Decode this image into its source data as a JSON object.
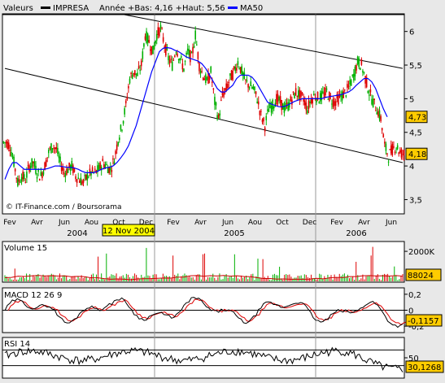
{
  "legend": {
    "valeurs_label": "Valeurs",
    "stock_name": "IMPRESA",
    "range_label": "Année +Bas: 4,16 +Haut: 5,56",
    "ma_label": "MA50",
    "stock_color": "#000000",
    "ma_color": "#0000ff"
  },
  "source_label": "© IT-Finance.com / Boursorama",
  "chart_data": [
    {
      "type": "candlestick",
      "name": "IMPRESA",
      "y_ticks": [
        "6",
        "5,5",
        "5",
        "4,5",
        "4",
        "3,5"
      ],
      "y_tick_values": [
        6,
        5.5,
        5,
        4.5,
        4,
        3.5
      ],
      "ylim": [
        3.3,
        6.25
      ],
      "month_labels": [
        "Fev",
        "Avr",
        "Jun",
        "Aou",
        "Oct",
        "Dec",
        "Fev",
        "Avr",
        "Jun",
        "Aou",
        "Oct",
        "Dec",
        "Fev",
        "Avr",
        "Jun"
      ],
      "year_labels": [
        "2004",
        "2005",
        "2006"
      ],
      "cursor_date": "12 Nov 2004",
      "price_labels": [
        {
          "text": "4,73",
          "value": 4.73
        },
        {
          "text": "4,18",
          "value": 4.18
        }
      ],
      "trend_channel": [
        {
          "from": [
            0,
            5.45
          ],
          "to": [
            120,
            4.05
          ]
        },
        {
          "from": [
            36,
            6.25
          ],
          "to": [
            120,
            5.45
          ]
        }
      ],
      "series": [
        {
          "name": "IMPRESA",
          "color": "#000000",
          "values": [
            4.35,
            4.3,
            4.05,
            3.75,
            3.85,
            3.8,
            4.0,
            4.05,
            3.9,
            3.85,
            4.0,
            4.2,
            4.3,
            4.25,
            4.05,
            3.9,
            3.95,
            4.0,
            3.85,
            3.8,
            3.75,
            3.85,
            3.9,
            3.9,
            3.95,
            4.05,
            4.0,
            3.95,
            4.1,
            4.4,
            4.6,
            4.9,
            5.3,
            5.4,
            5.35,
            5.5,
            5.95,
            5.85,
            5.7,
            5.95,
            6.05,
            5.8,
            5.6,
            5.5,
            5.75,
            5.6,
            5.45,
            5.7,
            5.6,
            5.95,
            5.5,
            5.35,
            5.25,
            5.4,
            4.95,
            4.7,
            5.05,
            5.15,
            5.3,
            5.4,
            5.55,
            5.4,
            5.25,
            5.2,
            5.15,
            5.0,
            4.75,
            4.6,
            4.85,
            4.9,
            5.0,
            4.95,
            4.85,
            4.9,
            5.0,
            5.1,
            5.05,
            5.0,
            4.85,
            5.0,
            5.05,
            5.0,
            5.05,
            5.1,
            5.0,
            4.95,
            5.0,
            5.05,
            5.1,
            5.2,
            5.35,
            5.55,
            5.5,
            5.3,
            5.1,
            4.95,
            4.85,
            4.7,
            4.3,
            4.15,
            4.25,
            4.3,
            4.2,
            4.18
          ]
        },
        {
          "name": "MA50",
          "color": "#0000ff",
          "values": [
            3.8,
            3.95,
            4.05,
            4.05,
            4.0,
            3.95,
            3.95,
            3.95,
            3.95,
            3.95,
            3.95,
            3.96,
            3.98,
            4.0,
            4.0,
            3.99,
            3.98,
            3.98,
            3.97,
            3.95,
            3.92,
            3.9,
            3.9,
            3.9,
            3.92,
            3.95,
            3.97,
            3.98,
            4.0,
            4.05,
            4.12,
            4.2,
            4.3,
            4.45,
            4.6,
            4.8,
            5.0,
            5.2,
            5.4,
            5.55,
            5.7,
            5.75,
            5.76,
            5.75,
            5.72,
            5.7,
            5.66,
            5.62,
            5.6,
            5.58,
            5.56,
            5.52,
            5.45,
            5.35,
            5.25,
            5.15,
            5.1,
            5.1,
            5.15,
            5.2,
            5.3,
            5.35,
            5.35,
            5.35,
            5.32,
            5.25,
            5.15,
            5.05,
            4.95,
            4.92,
            4.9,
            4.88,
            4.88,
            4.9,
            4.93,
            4.96,
            4.98,
            5.0,
            5.0,
            5.0,
            5.0,
            5.0,
            5.0,
            5.02,
            5.03,
            5.04,
            5.05,
            5.06,
            5.08,
            5.1,
            5.14,
            5.2,
            5.25,
            5.3,
            5.3,
            5.25,
            5.15,
            5.0,
            4.85,
            4.73
          ]
        }
      ]
    },
    {
      "type": "bar",
      "title": "Volume 15",
      "y_ticks": [
        "2000K"
      ],
      "y_tick_values": [
        2000
      ],
      "ylim": [
        0,
        2600
      ],
      "last_value_label": "88024"
    },
    {
      "type": "line",
      "title": "MACD 12 26 9",
      "y_ticks": [
        "0,2",
        "0",
        "-0,2"
      ],
      "y_tick_values": [
        0.2,
        0,
        -0.2
      ],
      "ylim": [
        -0.27,
        0.27
      ],
      "last_value_label": "-0,1157"
    },
    {
      "type": "line",
      "title": "RSI 14",
      "y_ticks": [
        "50"
      ],
      "y_tick_values": [
        50
      ],
      "ylim": [
        0,
        100
      ],
      "last_value_label": "30,1268"
    }
  ]
}
